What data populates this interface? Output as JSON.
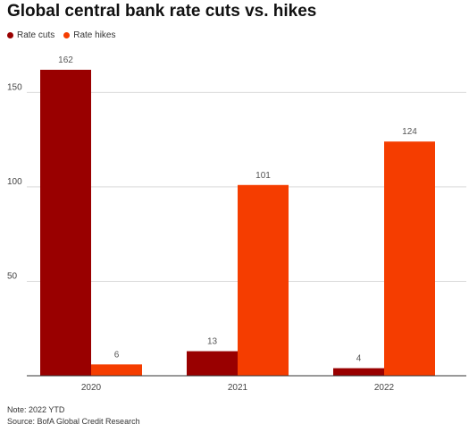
{
  "chart_data": {
    "type": "bar",
    "title": "Global central bank rate cuts vs. hikes",
    "xlabel": "",
    "ylabel": "",
    "categories": [
      "2020",
      "2021",
      "2022"
    ],
    "series": [
      {
        "name": "Rate cuts",
        "color": "#990000",
        "values": [
          162,
          13,
          4
        ]
      },
      {
        "name": "Rate hikes",
        "color": "#f53d00",
        "values": [
          6,
          101,
          124
        ]
      }
    ],
    "data_labels": [
      "162",
      "6",
      "13",
      "101",
      "4",
      "124"
    ],
    "yticks": [
      50,
      100,
      150
    ],
    "ytick_labels": [
      "50",
      "100",
      "150"
    ],
    "ylim": [
      0,
      180
    ],
    "grid": true,
    "legend": "top-left"
  },
  "footer": {
    "note": "Note: 2022 YTD",
    "source": "Source: BofA Global Credit Research"
  }
}
